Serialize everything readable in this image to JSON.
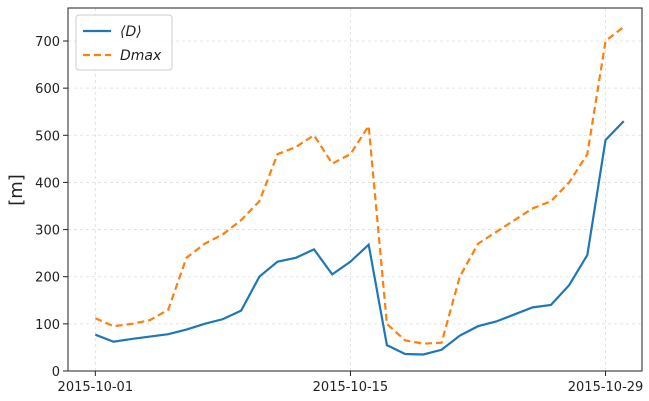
{
  "chart_data": {
    "type": "line",
    "ylabel": "[m]",
    "x": [
      "2015-10-01",
      "2015-10-02",
      "2015-10-03",
      "2015-10-04",
      "2015-10-05",
      "2015-10-06",
      "2015-10-07",
      "2015-10-08",
      "2015-10-09",
      "2015-10-10",
      "2015-10-11",
      "2015-10-12",
      "2015-10-13",
      "2015-10-14",
      "2015-10-15",
      "2015-10-16",
      "2015-10-17",
      "2015-10-18",
      "2015-10-19",
      "2015-10-20",
      "2015-10-21",
      "2015-10-22",
      "2015-10-23",
      "2015-10-24",
      "2015-10-25",
      "2015-10-26",
      "2015-10-27",
      "2015-10-28",
      "2015-10-29",
      "2015-10-30"
    ],
    "series": [
      {
        "name": "⟨D⟩",
        "color": "#1f77b4",
        "dash": false,
        "values": [
          77,
          62,
          68,
          73,
          78,
          88,
          100,
          110,
          128,
          200,
          232,
          240,
          258,
          205,
          232,
          268,
          55,
          36,
          35,
          45,
          75,
          95,
          105,
          120,
          135,
          140,
          182,
          246,
          490,
          530
        ]
      },
      {
        "name": "Dmax",
        "color": "#ff7f0e",
        "dash": true,
        "values": [
          112,
          95,
          100,
          108,
          130,
          240,
          270,
          290,
          320,
          360,
          460,
          475,
          500,
          440,
          460,
          520,
          100,
          65,
          58,
          60,
          200,
          270,
          295,
          320,
          345,
          360,
          400,
          460,
          700,
          730
        ]
      }
    ],
    "xlim": [
      "2015-09-29T12:00",
      "2015-10-31"
    ],
    "xticks": [
      "2015-10-01",
      "2015-10-15",
      "2015-10-29"
    ],
    "ylim": [
      0,
      770
    ],
    "yticks": [
      0,
      100,
      200,
      300,
      400,
      500,
      600,
      700
    ],
    "grid": true,
    "legend": "upper-left"
  }
}
